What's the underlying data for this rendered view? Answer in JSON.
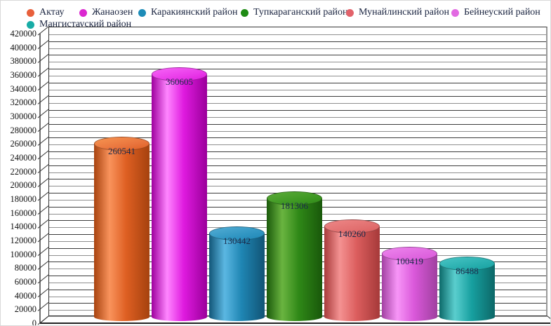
{
  "chart_data": {
    "type": "bar",
    "style": "3d-cylinder",
    "title": "",
    "xlabel": "",
    "ylabel": "",
    "categories": [
      "Актау",
      "Жанаозен",
      "Каракиянский район",
      "Тупкараганский район",
      "Мунайлинский район",
      "Бейнеуский район",
      "Мангистауский район"
    ],
    "values": [
      260541,
      360605,
      130442,
      181306,
      140260,
      100419,
      86488
    ],
    "data_labels": [
      "260541",
      "360605",
      "130442",
      "181306",
      "140260",
      "100419",
      "86488"
    ],
    "ylim": [
      0,
      420000
    ],
    "y_tick_step": 20000,
    "y_minor_step": 10000,
    "grid": true,
    "legend_position": "top",
    "x_tick_labels_shown": false,
    "colors": [
      {
        "legend": "#E8603C",
        "dark": "#A8430F",
        "light": "#F9935C",
        "mid": "#DE5F22",
        "top": "#E9743D",
        "top_light": "#F5914F"
      },
      {
        "legend": "#DB28D0",
        "dark": "#9E009E",
        "light": "#FF86FF",
        "mid": "#DF1ADF",
        "top": "#E93AE9",
        "top_light": "#F560F5"
      },
      {
        "legend": "#1D8CB8",
        "dark": "#125678",
        "light": "#5BB7E2",
        "mid": "#1F86B4",
        "top": "#3095C2",
        "top_light": "#4FAAD2"
      },
      {
        "legend": "#1F8B14",
        "dark": "#1A5A0B",
        "light": "#6AB440",
        "mid": "#2F8817",
        "top": "#3E9823",
        "top_light": "#58A936"
      },
      {
        "legend": "#E2626A",
        "dark": "#A83B3B",
        "light": "#F49292",
        "mid": "#DC5E5E",
        "top": "#E27070",
        "top_light": "#EC8484"
      },
      {
        "legend": "#E26AE2",
        "dark": "#A241A2",
        "light": "#F795F7",
        "mid": "#DA58DA",
        "top": "#E068E0",
        "top_light": "#EC82EC"
      },
      {
        "legend": "#18ACA6",
        "dark": "#0D6A6A",
        "light": "#5ACECE",
        "mid": "#17A0A0",
        "top": "#28AEAE",
        "top_light": "#45C2C2"
      }
    ]
  }
}
